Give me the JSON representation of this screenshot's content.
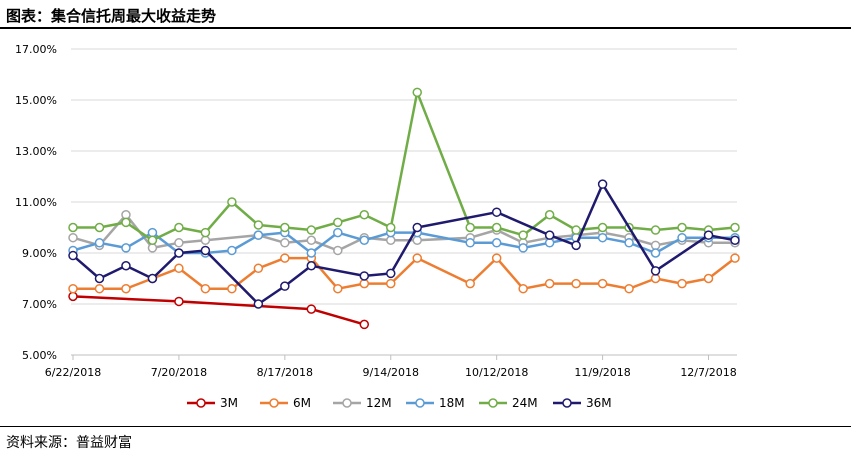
{
  "title": "图表：集合信托周最大收益走势",
  "source": "资料来源：普益财富",
  "chart_data": {
    "type": "line",
    "title": "图表：集合信托周最大收益走势",
    "xlabel": "",
    "ylabel": "",
    "ylim": [
      5,
      17
    ],
    "y_ticks": [
      "5.00%",
      "7.00%",
      "9.00%",
      "11.00%",
      "13.00%",
      "15.00%",
      "17.00%"
    ],
    "y_tick_values": [
      5,
      7,
      9,
      11,
      13,
      15,
      17
    ],
    "x_ticks": [
      "6/22/2018",
      "7/20/2018",
      "8/17/2018",
      "9/14/2018",
      "10/12/2018",
      "11/9/2018",
      "12/7/2018"
    ],
    "x_tick_index": [
      0,
      4,
      8,
      12,
      16,
      20,
      24
    ],
    "n_points": 26,
    "grid": "horizontal",
    "legend": "bottom",
    "series": [
      {
        "name": "3M",
        "color": "#C00000",
        "x": [
          0,
          4,
          9,
          11
        ],
        "values": [
          7.3,
          7.1,
          6.8,
          6.2
        ]
      },
      {
        "name": "6M",
        "color": "#ED7D31",
        "x": [
          0,
          1,
          2,
          3,
          4,
          5,
          6,
          7,
          8,
          9,
          10,
          11,
          12,
          13,
          15,
          16,
          17,
          18,
          19,
          20,
          21,
          22,
          23,
          24,
          25
        ],
        "values": [
          7.6,
          7.6,
          7.6,
          8.0,
          8.4,
          7.6,
          7.6,
          8.4,
          8.8,
          8.8,
          7.6,
          7.8,
          7.8,
          8.8,
          7.8,
          8.8,
          7.6,
          7.8,
          7.8,
          7.8,
          7.6,
          8.0,
          7.8,
          8.0,
          8.8
        ]
      },
      {
        "name": "12M",
        "color": "#A5A5A5",
        "x": [
          0,
          1,
          2,
          3,
          4,
          5,
          7,
          8,
          9,
          10,
          11,
          12,
          13,
          15,
          16,
          17,
          18,
          19,
          20,
          21,
          22,
          23,
          24,
          25
        ],
        "values": [
          9.6,
          9.3,
          10.5,
          9.2,
          9.4,
          9.5,
          9.7,
          9.4,
          9.5,
          9.1,
          9.6,
          9.5,
          9.5,
          9.6,
          9.9,
          9.4,
          9.6,
          9.7,
          9.8,
          9.6,
          9.3,
          9.5,
          9.4,
          9.4
        ]
      },
      {
        "name": "18M",
        "color": "#5B9BD5",
        "x": [
          0,
          1,
          2,
          3,
          4,
          5,
          6,
          7,
          8,
          9,
          10,
          11,
          12,
          13,
          15,
          16,
          17,
          18,
          19,
          20,
          21,
          22,
          23,
          24,
          25
        ],
        "values": [
          9.1,
          9.4,
          9.2,
          9.8,
          9.0,
          9.0,
          9.1,
          9.7,
          9.8,
          9.0,
          9.8,
          9.5,
          9.8,
          9.8,
          9.4,
          9.4,
          9.2,
          9.4,
          9.6,
          9.6,
          9.4,
          9.0,
          9.6,
          9.6,
          9.6
        ]
      },
      {
        "name": "24M",
        "color": "#70AD47",
        "x": [
          0,
          1,
          2,
          3,
          4,
          5,
          6,
          7,
          8,
          9,
          10,
          11,
          12,
          13,
          15,
          16,
          17,
          18,
          19,
          20,
          21,
          22,
          23,
          24,
          25
        ],
        "values": [
          10.0,
          10.0,
          10.2,
          9.5,
          10.0,
          9.8,
          11.0,
          10.1,
          10.0,
          9.9,
          10.2,
          10.5,
          10.0,
          15.3,
          10.0,
          10.0,
          9.7,
          10.5,
          9.9,
          10.0,
          10.0,
          9.9,
          10.0,
          9.9,
          10.0
        ]
      },
      {
        "name": "36M",
        "color": "#1F1A6E",
        "x": [
          0,
          1,
          2,
          3,
          4,
          5,
          7,
          8,
          9,
          11,
          12,
          13,
          16,
          18,
          19,
          20,
          22,
          24,
          25
        ],
        "values": [
          8.9,
          8.0,
          8.5,
          8.0,
          9.0,
          9.1,
          7.0,
          7.7,
          8.5,
          8.1,
          8.2,
          10.0,
          10.6,
          9.7,
          9.3,
          11.7,
          8.3,
          9.7,
          9.5
        ]
      }
    ]
  }
}
